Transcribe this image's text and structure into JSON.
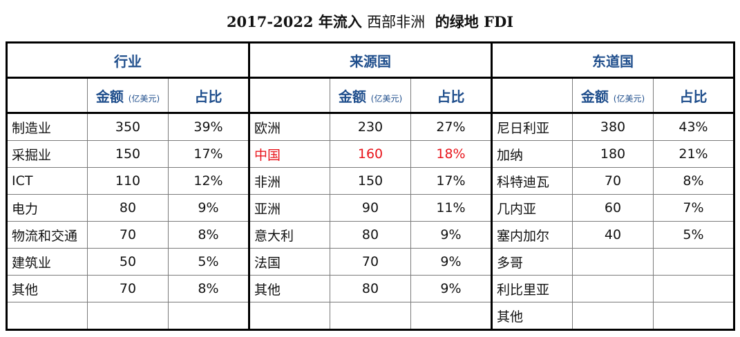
{
  "title": {
    "prefix": "2017-2022 年流入",
    "region": "西部非洲",
    "suffix": "的绿地 FDI"
  },
  "sections": {
    "industry": "行业",
    "source": "来源国",
    "host": "东道国"
  },
  "columns": {
    "amount": "金额",
    "unit": "(亿美元)",
    "share": "占比"
  },
  "rows": [
    {
      "ind": "制造业",
      "ind_amt": "350",
      "ind_pct": "39%",
      "src": "欧洲",
      "src_amt": "230",
      "src_pct": "27%",
      "host": "尼日利亚",
      "host_amt": "380",
      "host_pct": "43%"
    },
    {
      "ind": "采掘业",
      "ind_amt": "150",
      "ind_pct": "17%",
      "src": "中国",
      "src_amt": "160",
      "src_pct": "18%",
      "host": "加纳",
      "host_amt": "180",
      "host_pct": "21%"
    },
    {
      "ind": "ICT",
      "ind_amt": "110",
      "ind_pct": "12%",
      "src": "非洲",
      "src_amt": "150",
      "src_pct": "17%",
      "host": "科特迪瓦",
      "host_amt": "70",
      "host_pct": "8%"
    },
    {
      "ind": "电力",
      "ind_amt": "80",
      "ind_pct": "9%",
      "src": "亚洲",
      "src_amt": "90",
      "src_pct": "11%",
      "host": "几内亚",
      "host_amt": "60",
      "host_pct": "7%"
    },
    {
      "ind": "物流和交通",
      "ind_amt": "70",
      "ind_pct": "8%",
      "src": "意大利",
      "src_amt": "80",
      "src_pct": "9%",
      "host": "塞内加尔",
      "host_amt": "40",
      "host_pct": "5%"
    },
    {
      "ind": "建筑业",
      "ind_amt": "50",
      "ind_pct": "5%",
      "src": "法国",
      "src_amt": "70",
      "src_pct": "9%",
      "host": "多哥",
      "host_amt": "",
      "host_pct": ""
    },
    {
      "ind": "其他",
      "ind_amt": "70",
      "ind_pct": "8%",
      "src": "其他",
      "src_amt": "80",
      "src_pct": "9%",
      "host": "利比里亚",
      "host_amt": "",
      "host_pct": ""
    },
    {
      "ind": "",
      "ind_amt": "",
      "ind_pct": "",
      "src": "",
      "src_amt": "",
      "src_pct": "",
      "host": "其他",
      "host_amt": "",
      "host_pct": ""
    }
  ],
  "highlight_row_source": 1,
  "colors": {
    "header_text": "#1f4e8c",
    "highlight": "#e8141b",
    "outer_border": "#000000",
    "grid": "#7a7a7a"
  }
}
